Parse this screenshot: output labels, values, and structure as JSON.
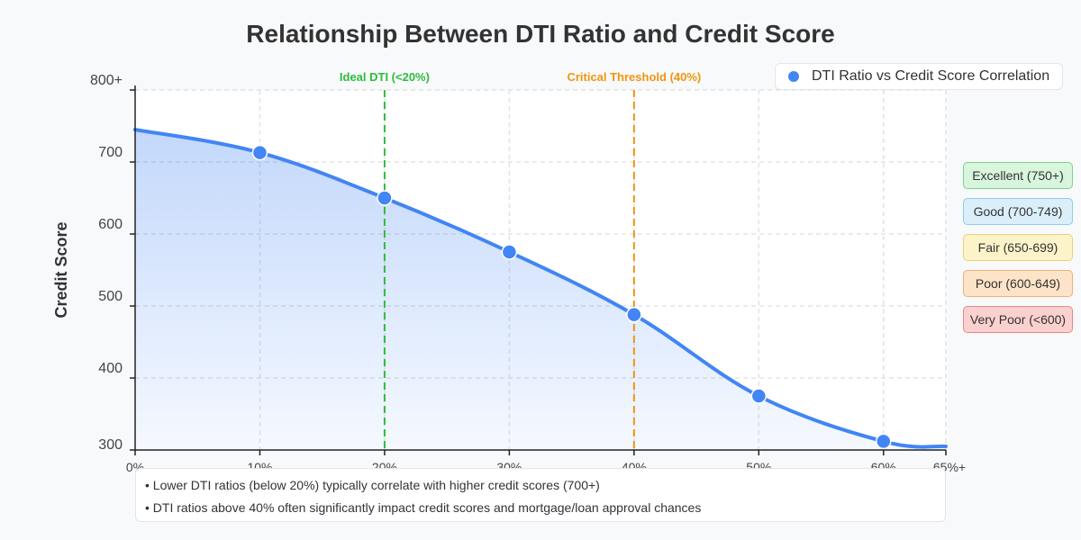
{
  "chart_data": {
    "type": "line",
    "title": "Relationship Between DTI Ratio and Credit Score",
    "xlabel": "",
    "ylabel": "Credit Score",
    "x_ticks": [
      "0%",
      "10%",
      "20%",
      "30%",
      "40%",
      "50%",
      "60%",
      "65%+"
    ],
    "y_ticks": [
      "300",
      "400",
      "500",
      "600",
      "700",
      "800+"
    ],
    "xlim": [
      0,
      65
    ],
    "ylim": [
      300,
      800
    ],
    "grid": true,
    "legend_position": "top-right",
    "series": [
      {
        "name": "DTI Ratio vs Credit Score Correlation",
        "color": "#4285f4",
        "points": [
          {
            "x": 10,
            "y": 713
          },
          {
            "x": 20,
            "y": 650
          },
          {
            "x": 30,
            "y": 575
          },
          {
            "x": 40,
            "y": 488
          },
          {
            "x": 50,
            "y": 375
          },
          {
            "x": 60,
            "y": 312
          }
        ]
      }
    ],
    "curve_endpoints": {
      "start": {
        "x": 0,
        "y": 745
      },
      "end": {
        "x": 65,
        "y": 305
      }
    },
    "reference_lines": [
      {
        "x": 20,
        "label": "Ideal DTI (<20%)",
        "color": "#2ebd3a"
      },
      {
        "x": 40,
        "label": "Critical Threshold (40%)",
        "color": "#f0950c"
      }
    ]
  },
  "rating_legend": [
    {
      "label": "Excellent (750+)",
      "bg": "#d8f5dd",
      "border": "#7fd18b"
    },
    {
      "label": "Good (700-749)",
      "bg": "#dbeffa",
      "border": "#8fcbe9"
    },
    {
      "label": "Fair (650-699)",
      "bg": "#fcf3c9",
      "border": "#e9d27a"
    },
    {
      "label": "Poor (600-649)",
      "bg": "#fde3c7",
      "border": "#eab27a"
    },
    {
      "label": "Very Poor (<600)",
      "bg": "#fbd1cf",
      "border": "#e58a85"
    }
  ],
  "notes": [
    "• Lower DTI ratios (below 20%) typically correlate with higher credit scores (700+)",
    "• DTI ratios above 40% often significantly impact credit scores and mortgage/loan approval chances"
  ]
}
